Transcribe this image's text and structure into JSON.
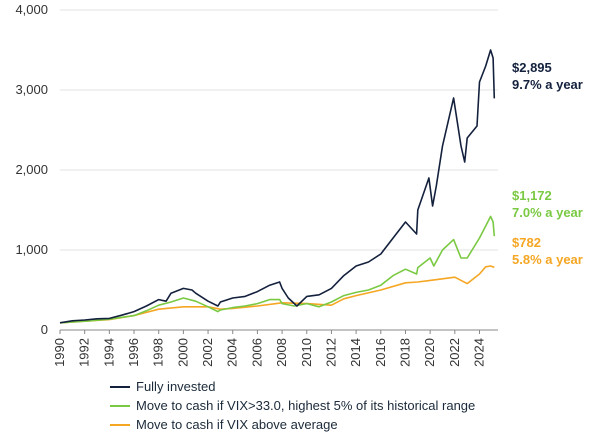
{
  "chart_data": {
    "type": "line",
    "ylim": [
      0,
      4000
    ],
    "xlim": [
      1990,
      2025.5
    ],
    "y_ticks": [
      0,
      1000,
      2000,
      3000,
      4000
    ],
    "y_tick_labels": [
      "0",
      "1,000",
      "2,000",
      "3,000",
      "4,000"
    ],
    "x_ticks": [
      1990,
      1992,
      1994,
      1996,
      1998,
      2000,
      2002,
      2004,
      2006,
      2008,
      2010,
      2012,
      2014,
      2016,
      2018,
      2020,
      2022,
      2024
    ],
    "x_tick_labels": [
      "1990",
      "1992",
      "1994",
      "1996",
      "1998",
      "2000",
      "2002",
      "2004",
      "2006",
      "2008",
      "2010",
      "2012",
      "2014",
      "2016",
      "2018",
      "2020",
      "2022",
      "2024"
    ],
    "gridlines": "horizontal",
    "legend_position": "bottom",
    "series": [
      {
        "name": "Fully invested",
        "color": "#14213d",
        "end_value_label": "$2,895",
        "end_rate_label": "9.7% a year",
        "x": [
          1990,
          1991,
          1992,
          1993,
          1994,
          1995,
          1996,
          1997,
          1998,
          1998.6,
          1999,
          2000,
          2000.7,
          2001,
          2002,
          2002.8,
          2003,
          2004,
          2005,
          2006,
          2007,
          2007.8,
          2008,
          2008.5,
          2009.2,
          2010,
          2011,
          2012,
          2013,
          2014,
          2015,
          2016,
          2017,
          2018,
          2018.9,
          2019,
          2019.9,
          2020.2,
          2020.5,
          2021,
          2021.9,
          2022.5,
          2022.8,
          2023,
          2023.8,
          2024,
          2024.5,
          2024.9,
          2025.1,
          2025.2
        ],
        "y": [
          90,
          115,
          125,
          140,
          145,
          185,
          230,
          300,
          380,
          360,
          460,
          520,
          500,
          460,
          360,
          300,
          350,
          400,
          420,
          480,
          560,
          600,
          520,
          400,
          300,
          420,
          440,
          520,
          680,
          800,
          850,
          950,
          1150,
          1350,
          1200,
          1500,
          1900,
          1550,
          1800,
          2300,
          2900,
          2300,
          2100,
          2400,
          2550,
          3100,
          3300,
          3500,
          3400,
          2895
        ]
      },
      {
        "name": "Move to cash if VIX>33.0, highest 5% of its historical range",
        "color": "#7ac943",
        "end_value_label": "$1,172",
        "end_rate_label": "7.0% a year",
        "x": [
          1990,
          1992,
          1994,
          1996,
          1997,
          1998,
          1999,
          2000,
          2001,
          2002,
          2002.8,
          2003,
          2004,
          2005,
          2006,
          2007,
          2007.8,
          2008,
          2009,
          2010,
          2011,
          2012,
          2013,
          2014,
          2015,
          2016,
          2017,
          2018,
          2018.9,
          2019,
          2020,
          2020.3,
          2021,
          2021.9,
          2022.5,
          2023,
          2024,
          2024.5,
          2024.9,
          2025.1,
          2025.2
        ],
        "y": [
          90,
          110,
          135,
          180,
          240,
          310,
          350,
          400,
          360,
          290,
          230,
          250,
          280,
          300,
          330,
          380,
          380,
          330,
          300,
          330,
          290,
          350,
          430,
          470,
          500,
          560,
          680,
          760,
          700,
          780,
          900,
          800,
          1000,
          1130,
          900,
          900,
          1150,
          1300,
          1420,
          1350,
          1172
        ]
      },
      {
        "name": "Move to cash if VIX above average",
        "color": "#f5a623",
        "end_value_label": "$782",
        "end_rate_label": "5.8% a year",
        "x": [
          1990,
          1992,
          1994,
          1996,
          1997,
          1998,
          2000,
          2002,
          2003,
          2004,
          2006,
          2008,
          2010,
          2012,
          2013,
          2014,
          2016,
          2018,
          2019,
          2020,
          2021,
          2022,
          2023,
          2024,
          2024.5,
          2024.9,
          2025.2
        ],
        "y": [
          90,
          110,
          130,
          180,
          220,
          260,
          290,
          290,
          260,
          270,
          300,
          340,
          330,
          310,
          390,
          430,
          500,
          590,
          600,
          620,
          640,
          660,
          580,
          700,
          790,
          800,
          782
        ]
      }
    ]
  }
}
